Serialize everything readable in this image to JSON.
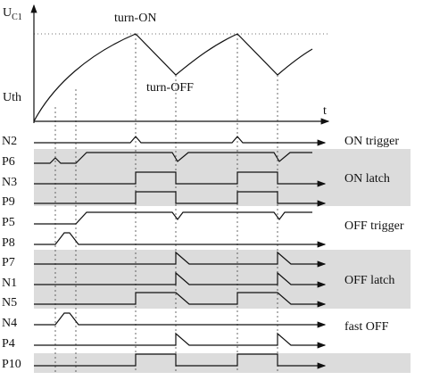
{
  "axis": {
    "y_label": "U",
    "y_label_sub": "C1",
    "threshold": "Uth",
    "x_label": "t"
  },
  "annotations": {
    "turn_on": "turn-ON",
    "turn_off": "turn-OFF"
  },
  "signals": [
    "N2",
    "P6",
    "N3",
    "P9",
    "P5",
    "P8",
    "P7",
    "N1",
    "N5",
    "N4",
    "P4",
    "P10"
  ],
  "groups": [
    "ON trigger",
    "ON latch",
    "OFF trigger",
    "OFF latch",
    "fast OFF"
  ]
}
